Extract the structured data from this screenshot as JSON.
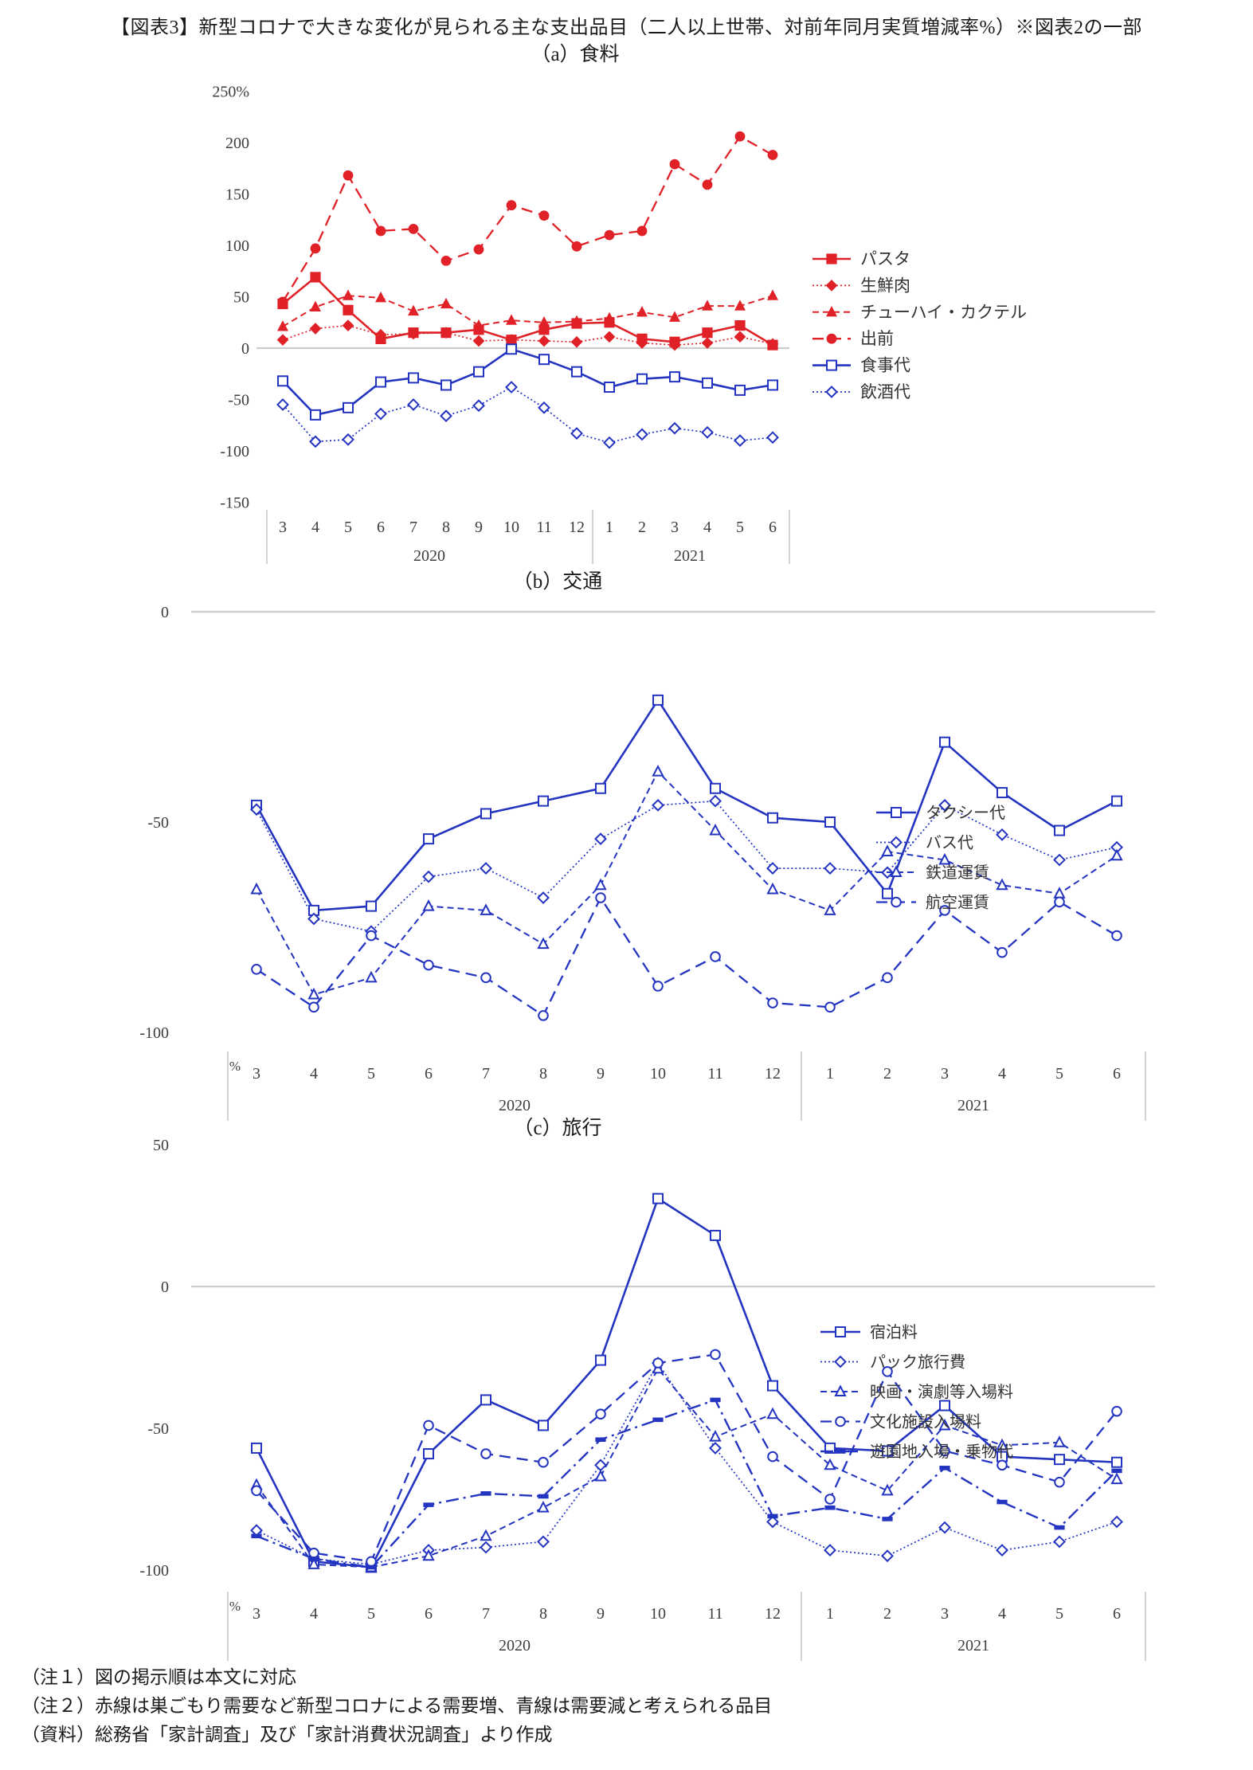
{
  "page": {
    "title": "【図表3】新型コロナで大きな変化が見られる主な支出品目（二人以上世帯、対前年同月実質増減率%）※図表2の一部",
    "notes": [
      "（注１）図の掲示順は本文に対応",
      "（注２）赤線は巣ごもり需要など新型コロナによる需要増、青線は需要減と考えられる品目",
      "（資料）総務省「家計調査」及び「家計消費状況調査」より作成"
    ]
  },
  "colors": {
    "red": "#e02128",
    "blue": "#2334c1",
    "zero_line": "#cccccc",
    "separator": "#c8c8c8",
    "axis_text": "#3d3d3d"
  },
  "chart_data": [
    {
      "type": "line",
      "title": "（a）食料",
      "x": [
        "3",
        "4",
        "5",
        "6",
        "7",
        "8",
        "9",
        "10",
        "11",
        "12",
        "1",
        "2",
        "3",
        "4",
        "5",
        "6"
      ],
      "years": [
        "2020",
        "2021"
      ],
      "ylim": [
        -150,
        250
      ],
      "grid": "zero-line-only",
      "legend_position": "right",
      "yticks": [
        {
          "v": 250,
          "label": "250%"
        },
        {
          "v": 200,
          "label": "200"
        },
        {
          "v": 150,
          "label": "150"
        },
        {
          "v": 100,
          "label": "100"
        },
        {
          "v": 50,
          "label": "50"
        },
        {
          "v": 0,
          "label": "0"
        },
        {
          "v": -50,
          "label": "-50"
        },
        {
          "v": -100,
          "label": "-100"
        },
        {
          "v": -150,
          "label": "-150"
        }
      ],
      "percent_label": "",
      "series": [
        {
          "name": "パスタ",
          "color": "red",
          "line": "solid",
          "marker": "square",
          "filled": true,
          "values": [
            43,
            69,
            37,
            9,
            15,
            15,
            18,
            8,
            18,
            24,
            25,
            9,
            6,
            15,
            22,
            3
          ]
        },
        {
          "name": "生鮮肉",
          "color": "red",
          "line": "dotted",
          "marker": "diamond",
          "filled": true,
          "values": [
            8,
            19,
            22,
            13,
            14,
            15,
            7,
            8,
            7,
            6,
            11,
            5,
            3,
            5,
            11,
            4
          ]
        },
        {
          "name": "チューハイ・カクテル",
          "color": "red",
          "line": "dashed",
          "marker": "triangle",
          "filled": true,
          "values": [
            21,
            40,
            51,
            49,
            36,
            43,
            22,
            27,
            25,
            26,
            29,
            35,
            30,
            41,
            41,
            51
          ]
        },
        {
          "name": "出前",
          "color": "red",
          "line": "longdash",
          "marker": "circle",
          "filled": true,
          "values": [
            45,
            97,
            168,
            114,
            116,
            85,
            96,
            139,
            129,
            99,
            110,
            114,
            179,
            159,
            206,
            188
          ]
        },
        {
          "name": "食事代",
          "color": "blue",
          "line": "solid",
          "marker": "square",
          "filled": false,
          "values": [
            -32,
            -65,
            -58,
            -33,
            -29,
            -36,
            -23,
            -1,
            -11,
            -23,
            -38,
            -30,
            -28,
            -34,
            -41,
            -36
          ]
        },
        {
          "name": "飲酒代",
          "color": "blue",
          "line": "dotted",
          "marker": "diamond",
          "filled": false,
          "values": [
            -55,
            -91,
            -89,
            -64,
            -55,
            -66,
            -56,
            -38,
            -58,
            -83,
            -92,
            -84,
            -78,
            -82,
            -90,
            -87
          ]
        }
      ]
    },
    {
      "type": "line",
      "title": "（b）交通",
      "x": [
        "3",
        "4",
        "5",
        "6",
        "7",
        "8",
        "9",
        "10",
        "11",
        "12",
        "1",
        "2",
        "3",
        "4",
        "5",
        "6"
      ],
      "years": [
        "2020",
        "2021"
      ],
      "ylim": [
        -100,
        0
      ],
      "grid": "zero-line-only",
      "legend_position": "right",
      "yticks": [
        {
          "v": 0,
          "label": "0"
        },
        {
          "v": -50,
          "label": "-50"
        },
        {
          "v": -100,
          "label": "-100"
        }
      ],
      "percent_label": "%",
      "series": [
        {
          "name": "タクシー代",
          "color": "blue",
          "line": "solid",
          "marker": "square",
          "filled": false,
          "values": [
            -46,
            -71,
            -70,
            -54,
            -48,
            -45,
            -42,
            -21,
            -42,
            -49,
            -50,
            -67,
            -31,
            -43,
            -52,
            -45
          ]
        },
        {
          "name": "バス代",
          "color": "blue",
          "line": "dotted",
          "marker": "diamond",
          "filled": false,
          "values": [
            -47,
            -73,
            -76,
            -63,
            -61,
            -68,
            -54,
            -46,
            -45,
            -61,
            -61,
            -62,
            -46,
            -53,
            -59,
            -56
          ]
        },
        {
          "name": "鉄道運賃",
          "color": "blue",
          "line": "dashed",
          "marker": "triangle",
          "filled": false,
          "values": [
            -66,
            -91,
            -87,
            -70,
            -71,
            -79,
            -65,
            -38,
            -52,
            -66,
            -71,
            -57,
            -59,
            -65,
            -67,
            -58
          ]
        },
        {
          "name": "航空運賃",
          "color": "blue",
          "line": "longdash",
          "marker": "circle",
          "filled": false,
          "values": [
            -85,
            -94,
            -77,
            -84,
            -87,
            -96,
            -68,
            -89,
            -82,
            -93,
            -94,
            -87,
            -71,
            -81,
            -69,
            -77
          ]
        }
      ]
    },
    {
      "type": "line",
      "title": "（c）旅行",
      "x": [
        "3",
        "4",
        "5",
        "6",
        "7",
        "8",
        "9",
        "10",
        "11",
        "12",
        "1",
        "2",
        "3",
        "4",
        "5",
        "6"
      ],
      "years": [
        "2020",
        "2021"
      ],
      "ylim": [
        -100,
        50
      ],
      "grid": "zero-line-only",
      "legend_position": "right",
      "yticks": [
        {
          "v": 50,
          "label": "50"
        },
        {
          "v": 0,
          "label": "0"
        },
        {
          "v": -50,
          "label": "-50"
        },
        {
          "v": -100,
          "label": "-100"
        }
      ],
      "percent_label": "%",
      "series": [
        {
          "name": "宿泊料",
          "color": "blue",
          "line": "solid",
          "marker": "square",
          "filled": false,
          "values": [
            -57,
            -97,
            -99,
            -59,
            -40,
            -49,
            -26,
            31,
            18,
            -35,
            -57,
            -58,
            -42,
            -60,
            -61,
            -62
          ]
        },
        {
          "name": "パック旅行費",
          "color": "blue",
          "line": "dotted",
          "marker": "diamond",
          "filled": false,
          "values": [
            -86,
            -96,
            -98,
            -93,
            -92,
            -90,
            -63,
            -27,
            -57,
            -83,
            -93,
            -95,
            -85,
            -93,
            -90,
            -83
          ]
        },
        {
          "name": "映画・演劇等入場料",
          "color": "blue",
          "line": "dashed",
          "marker": "triangle",
          "filled": false,
          "values": [
            -70,
            -98,
            -99,
            -95,
            -88,
            -78,
            -67,
            -29,
            -53,
            -45,
            -63,
            -72,
            -49,
            -56,
            -55,
            -68
          ]
        },
        {
          "name": "文化施設入場料",
          "color": "blue",
          "line": "longdash",
          "marker": "circle",
          "filled": false,
          "values": [
            -72,
            -94,
            -97,
            -49,
            -59,
            -62,
            -45,
            -27,
            -24,
            -60,
            -75,
            -30,
            -58,
            -63,
            -69,
            -44
          ]
        },
        {
          "name": "遊園地入場・乗物代",
          "color": "blue",
          "line": "dashdot",
          "marker": "dash",
          "filled": true,
          "values": [
            -88,
            -96,
            -99,
            -77,
            -73,
            -74,
            -54,
            -47,
            -40,
            -81,
            -78,
            -82,
            -64,
            -76,
            -85,
            -65
          ]
        }
      ]
    }
  ]
}
